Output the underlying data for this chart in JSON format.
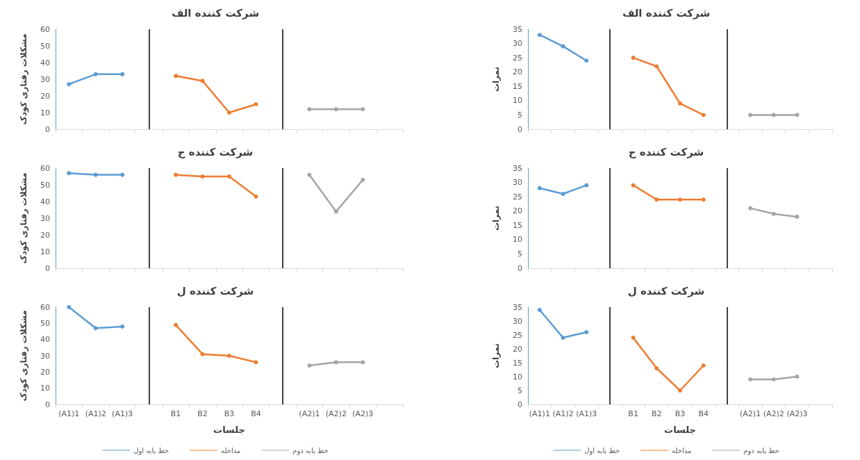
{
  "chart_data": [
    {
      "type": "line",
      "title": "شرکت کننده الف",
      "ylabel": "مشکلات رفتاری کودک",
      "categories": [
        null,
        null,
        null,
        null,
        null,
        null,
        null,
        null,
        null,
        null,
        null,
        null,
        null
      ],
      "ylim": [
        0,
        60
      ],
      "yticks": [
        0,
        10,
        20,
        30,
        40,
        50,
        60
      ],
      "tick_labels": "y",
      "marker": "circle",
      "line_style": "solid",
      "series": [
        {
          "color": "#5b9bd5",
          "values": [
            27,
            33,
            33,
            null,
            null,
            null,
            null,
            null,
            null,
            null,
            null,
            null,
            null
          ]
        },
        {
          "color": "#ed7d31",
          "values": [
            null,
            null,
            null,
            null,
            32,
            29,
            10,
            15,
            null,
            null,
            null,
            null,
            null
          ]
        },
        {
          "color": "#a5a5a5",
          "values": [
            null,
            null,
            null,
            null,
            null,
            null,
            null,
            null,
            null,
            12,
            12,
            12,
            null
          ]
        }
      ]
    },
    {
      "type": "line",
      "title": "شرکت کننده الف",
      "ylabel": "نمرات",
      "categories": [
        null,
        null,
        null,
        null,
        null,
        null,
        null,
        null,
        null,
        null,
        null,
        null,
        null
      ],
      "ylim": [
        0,
        35
      ],
      "yticks": [
        0,
        5,
        10,
        15,
        20,
        25,
        30,
        35
      ],
      "tick_labels": "y",
      "marker": "circle",
      "line_style": "solid",
      "series": [
        {
          "color": "#5b9bd5",
          "values": [
            33,
            29,
            24,
            null,
            null,
            null,
            null,
            null,
            null,
            null,
            null,
            null,
            null
          ]
        },
        {
          "color": "#ed7d31",
          "values": [
            null,
            null,
            null,
            null,
            25,
            22,
            9,
            5,
            null,
            null,
            null,
            null,
            null
          ]
        },
        {
          "color": "#a5a5a5",
          "values": [
            null,
            null,
            null,
            null,
            null,
            null,
            null,
            null,
            null,
            5,
            5,
            5,
            null
          ]
        }
      ]
    },
    {
      "type": "line",
      "title": "شرکت کننده ح",
      "ylabel": "مشکلات رفتاری کودک",
      "categories": [
        null,
        null,
        null,
        null,
        null,
        null,
        null,
        null,
        null,
        null,
        null,
        null,
        null
      ],
      "ylim": [
        0,
        60
      ],
      "yticks": [
        0,
        10,
        20,
        30,
        40,
        50,
        60
      ],
      "tick_labels": "y",
      "marker": "circle",
      "line_style": "solid",
      "series": [
        {
          "color": "#5b9bd5",
          "values": [
            57,
            56,
            56,
            null,
            null,
            null,
            null,
            null,
            null,
            null,
            null,
            null,
            null
          ]
        },
        {
          "color": "#ed7d31",
          "values": [
            null,
            null,
            null,
            null,
            56,
            55,
            55,
            43,
            null,
            null,
            null,
            null,
            null
          ]
        },
        {
          "color": "#a5a5a5",
          "values": [
            null,
            null,
            null,
            null,
            null,
            null,
            null,
            null,
            null,
            56,
            34,
            53,
            null
          ]
        }
      ]
    },
    {
      "type": "line",
      "title": "شرکت کننده ح",
      "ylabel": "نمرات",
      "categories": [
        null,
        null,
        null,
        null,
        null,
        null,
        null,
        null,
        null,
        null,
        null,
        null,
        null
      ],
      "ylim": [
        0,
        35
      ],
      "yticks": [
        0,
        5,
        10,
        15,
        20,
        25,
        30,
        35
      ],
      "tick_labels": "y",
      "marker": "circle",
      "line_style": "solid",
      "series": [
        {
          "color": "#5b9bd5",
          "values": [
            28,
            26,
            29,
            null,
            null,
            null,
            null,
            null,
            null,
            null,
            null,
            null,
            null
          ]
        },
        {
          "color": "#ed7d31",
          "values": [
            null,
            null,
            null,
            null,
            29,
            24,
            24,
            24,
            null,
            null,
            null,
            null,
            null
          ]
        },
        {
          "color": "#a5a5a5",
          "values": [
            null,
            null,
            null,
            null,
            null,
            null,
            null,
            null,
            null,
            21,
            19,
            18,
            null
          ]
        }
      ]
    },
    {
      "type": "line",
      "title": "شرکت کننده ل",
      "ylabel": "مشکلات رفتاری کودک",
      "xlabel": "جلسات",
      "categories": [
        "(A1)1",
        "(A1)2",
        "(A1)3",
        null,
        "B1",
        "B2",
        "B3",
        "B4",
        null,
        "(A2)1",
        "(A2)2",
        "(A2)3",
        null
      ],
      "ylim": [
        0,
        60
      ],
      "yticks": [
        0,
        10,
        20,
        30,
        40,
        50,
        60
      ],
      "marker": "circle",
      "line_style": "solid",
      "legend": "bottom",
      "series": [
        {
          "name": "خط پایه اول",
          "color": "#5b9bd5",
          "values": [
            60,
            47,
            48,
            null,
            null,
            null,
            null,
            null,
            null,
            null,
            null,
            null,
            null
          ]
        },
        {
          "name": "مداخله",
          "color": "#ed7d31",
          "values": [
            null,
            null,
            null,
            null,
            49,
            31,
            30,
            26,
            null,
            null,
            null,
            null,
            null
          ]
        },
        {
          "name": "خط پایه دوم",
          "color": "#a5a5a5",
          "values": [
            null,
            null,
            null,
            null,
            null,
            null,
            null,
            null,
            null,
            24,
            26,
            26,
            null
          ]
        }
      ]
    },
    {
      "type": "line",
      "title": "شرکت کننده ل",
      "ylabel": "نمرات",
      "xlabel": "جلسات",
      "categories": [
        "(A1)1",
        "(A1)2",
        "(A1)3",
        null,
        "B1",
        "B2",
        "B3",
        "B4",
        null,
        "(A2)1",
        "(A2)2",
        "(A2)3",
        null
      ],
      "ylim": [
        0,
        35
      ],
      "yticks": [
        0,
        5,
        10,
        15,
        20,
        25,
        30,
        35
      ],
      "marker": "circle",
      "line_style": "solid",
      "legend": "bottom",
      "series": [
        {
          "name": "خط پایه اول",
          "color": "#5b9bd5",
          "values": [
            34,
            24,
            26,
            null,
            null,
            null,
            null,
            null,
            null,
            null,
            null,
            null,
            null
          ]
        },
        {
          "name": "مداخله",
          "color": "#ed7d31",
          "values": [
            null,
            null,
            null,
            null,
            24,
            13,
            5,
            14,
            null,
            null,
            null,
            null,
            null
          ]
        },
        {
          "name": "خط پایه دوم",
          "color": "#a5a5a5",
          "values": [
            null,
            null,
            null,
            null,
            null,
            null,
            null,
            null,
            null,
            9,
            9,
            10,
            null
          ]
        }
      ]
    }
  ]
}
